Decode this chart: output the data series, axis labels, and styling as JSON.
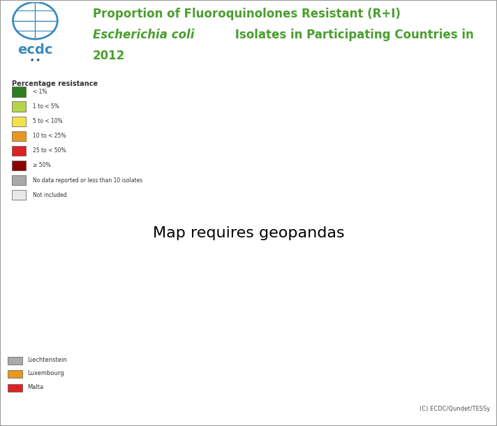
{
  "title_line1": "Proportion of Fluoroquinolones Resistant (R+I)",
  "title_line2": "Escherichia coli Isolates in Participating Countries in",
  "title_line3": "2012",
  "title_color": "#4a9e2f",
  "background_color": "#ffffff",
  "border_color": "#cccccc",
  "legend_title": "Percentage resistance",
  "legend_items": [
    {
      "label": "< 1%",
      "color": "#2e7d1e"
    },
    {
      "label": "1 to < 5%",
      "color": "#b8d44a"
    },
    {
      "label": "5 to < 10%",
      "color": "#f5e04a"
    },
    {
      "label": "10 to < 25%",
      "color": "#e89820"
    },
    {
      "label": "25 to < 50%",
      "color": "#dd2222"
    },
    {
      "label": "≥ 50%",
      "color": "#8b0000"
    },
    {
      "label": "No data reported or less than 10 isolates",
      "color": "#aaaaaa"
    },
    {
      "label": "Not included",
      "color": "#e8e8e8"
    }
  ],
  "country_colors": {
    "Iceland": "#f5e04a",
    "Norway": "#e89820",
    "Sweden": "#e89820",
    "Finland": "#e89820",
    "Denmark": "#e89820",
    "Estonia": "#e89820",
    "Latvia": "#e89820",
    "Lithuania": "#e89820",
    "Ireland": "#e89820",
    "United Kingdom": "#e89820",
    "Netherlands": "#e89820",
    "Belgium": "#e89820",
    "Germany": "#e89820",
    "Poland": "#dd2222",
    "Czech Republic": "#e89820",
    "Slovakia": "#e89820",
    "Austria": "#e89820",
    "Switzerland": "#e89820",
    "France": "#e89820",
    "Spain": "#dd2222",
    "Portugal": "#dd2222",
    "Italy": "#dd2222",
    "Slovenia": "#dd2222",
    "Croatia": "#dd2222",
    "Bosnia and Herz.": "#aaaaaa",
    "Serbia": "#aaaaaa",
    "Montenegro": "#aaaaaa",
    "Albania": "#aaaaaa",
    "North Macedonia": "#aaaaaa",
    "Kosovo": "#aaaaaa",
    "Romania": "#aaaaaa",
    "Bulgaria": "#dd2222",
    "Hungary": "#e89820",
    "Greece": "#dd2222",
    "Cyprus": "#dd2222",
    "Malta": "#dd2222",
    "Luxembourg": "#e89820",
    "Liechtenstein": "#aaaaaa",
    "Russia": "#e8e8e8",
    "Ukraine": "#e8e8e8",
    "Belarus": "#e8e8e8",
    "Moldova": "#e8e8e8",
    "Turkey": "#e8e8e8",
    "Morocco": "#e8e8e8",
    "Algeria": "#e8e8e8",
    "Tunisia": "#e8e8e8",
    "Libya": "#e8e8e8",
    "Egypt": "#e8e8e8",
    "Syria": "#e8e8e8",
    "Lebanon": "#e8e8e8",
    "Israel": "#e8e8e8",
    "Jordan": "#e8e8e8",
    "Saudi Arabia": "#e8e8e8",
    "Iraq": "#e8e8e8",
    "Iran": "#e8e8e8",
    "Georgia": "#e8e8e8",
    "Armenia": "#e8e8e8",
    "Azerbaijan": "#e8e8e8",
    "Kazakhstan": "#e8e8e8",
    "Uzbekistan": "#e8e8e8",
    "Turkmenistan": "#e8e8e8",
    "Afghanistan": "#e8e8e8"
  },
  "footer": "(C) ECDC/Qundet/TESSy",
  "bottom_legend": [
    {
      "label": "Liechtenstein",
      "color": "#aaaaaa"
    },
    {
      "label": "Luxembourg",
      "color": "#e89820"
    },
    {
      "label": "Malta",
      "color": "#dd2222"
    }
  ],
  "map_xlim": [
    -25,
    45
  ],
  "map_ylim": [
    30,
    72
  ]
}
